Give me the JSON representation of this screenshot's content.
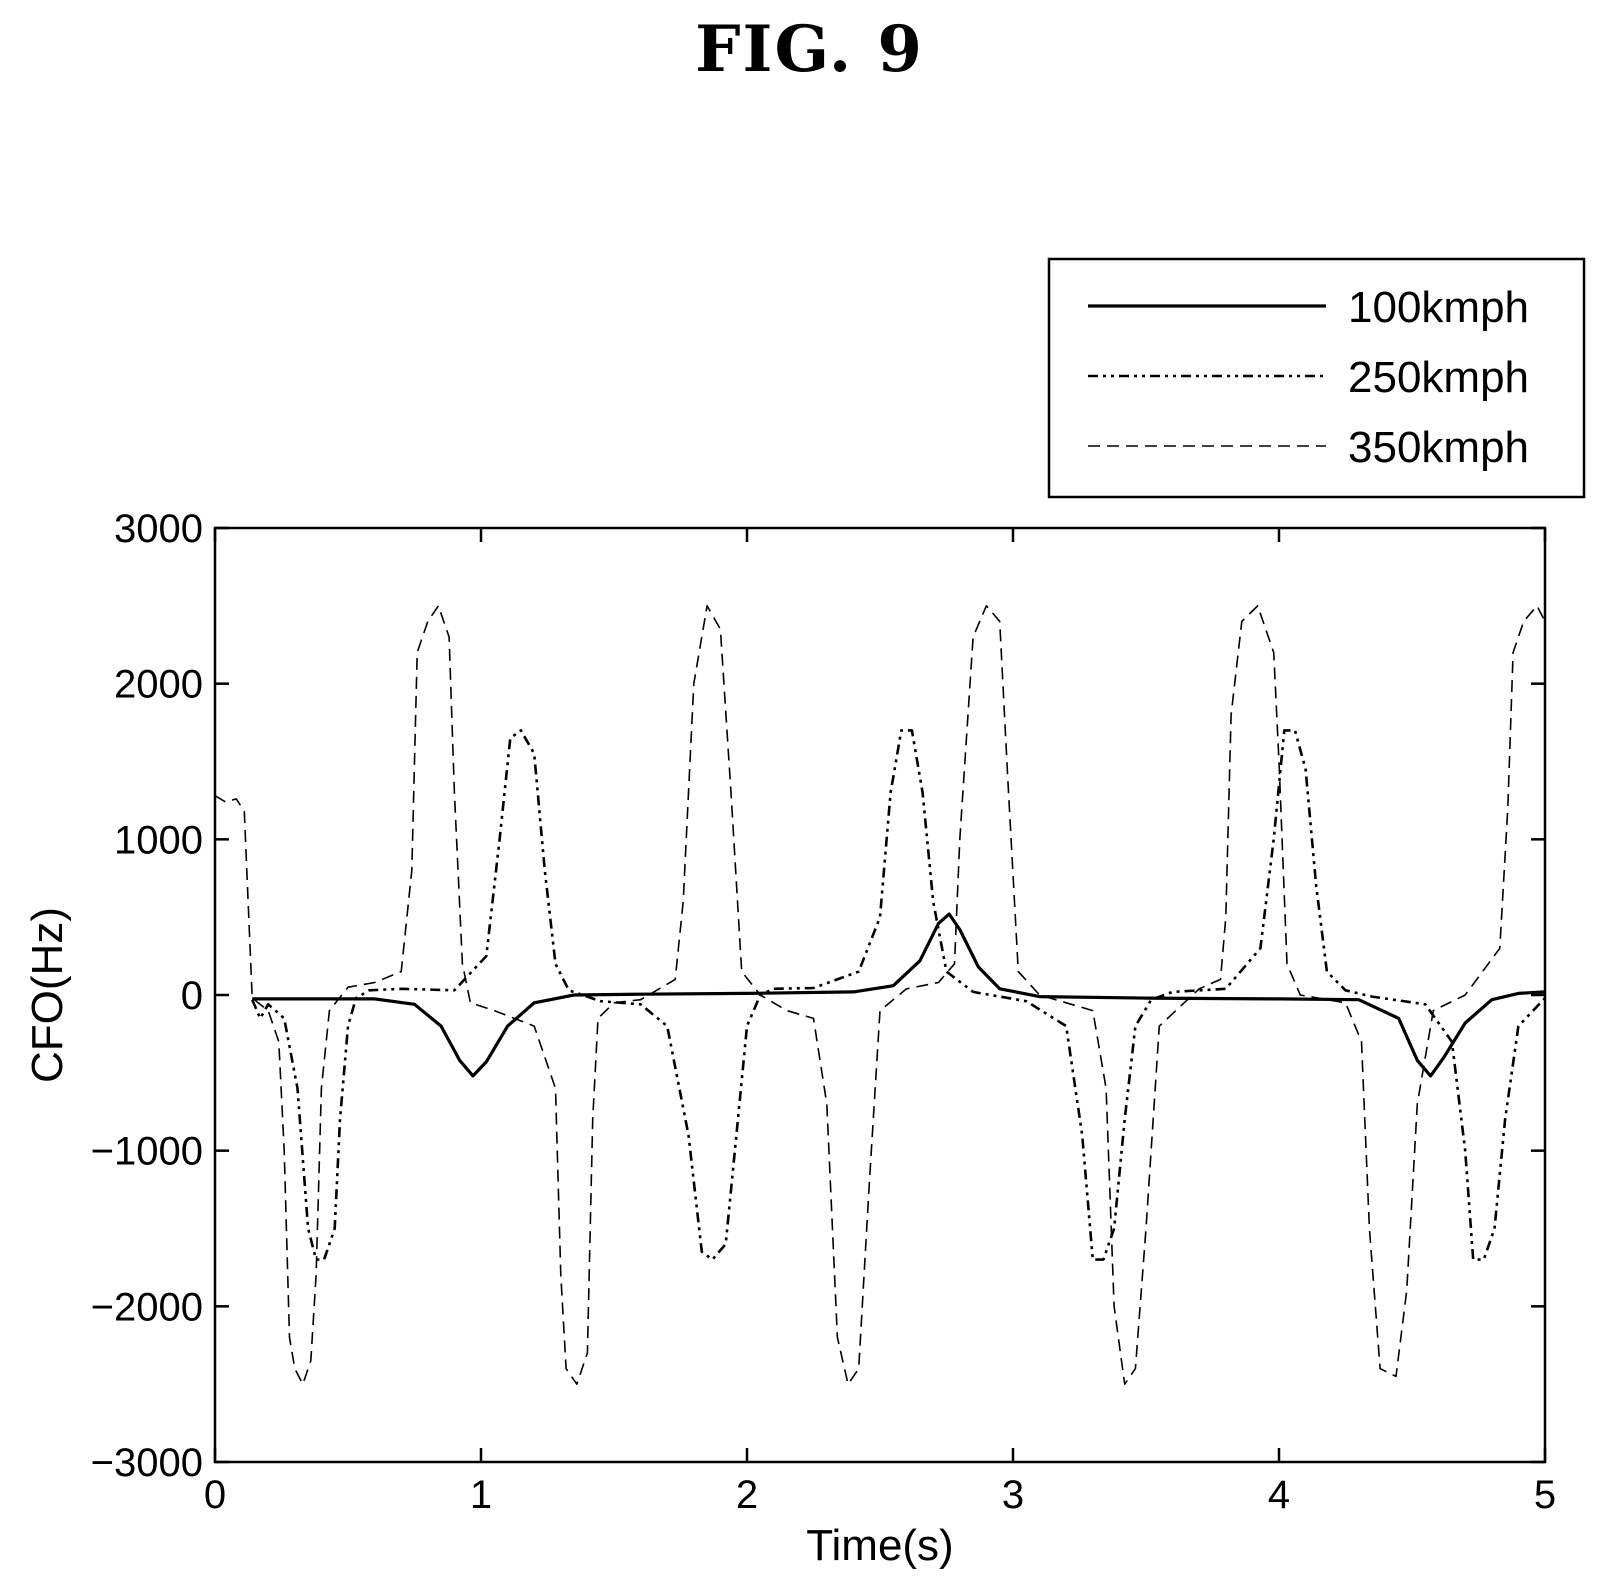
{
  "figure_title": "FIG. 9",
  "chart_data": {
    "type": "line",
    "title": "",
    "xlabel": "Time(s)",
    "ylabel": "CFO(Hz)",
    "xlim": [
      0,
      5
    ],
    "ylim": [
      -3000,
      3000
    ],
    "xticks": [
      0,
      1,
      2,
      3,
      4,
      5
    ],
    "yticks": [
      3000,
      2000,
      1000,
      0,
      -1000,
      -2000,
      -3000
    ],
    "xtick_labels": [
      "0",
      "1",
      "2",
      "3",
      "4",
      "5"
    ],
    "ytick_labels": [
      "3000",
      "2000",
      "1000",
      "0",
      "−1000",
      "−2000",
      "−3000"
    ],
    "grid": false,
    "legend_position": "top-right, above plot",
    "series": [
      {
        "name": "100kmph",
        "style": "solid",
        "x": [
          0.14,
          0.6,
          0.75,
          0.85,
          0.92,
          0.97,
          1.02,
          1.1,
          1.2,
          1.35,
          1.6,
          2.0,
          2.4,
          2.55,
          2.65,
          2.72,
          2.76,
          2.8,
          2.87,
          2.95,
          3.1,
          3.5,
          4.0,
          4.3,
          4.45,
          4.52,
          4.57,
          4.62,
          4.7,
          4.8,
          4.9,
          5.0
        ],
        "y": [
          -25,
          -25,
          -60,
          -200,
          -420,
          -520,
          -430,
          -200,
          -50,
          0,
          5,
          10,
          20,
          60,
          220,
          460,
          520,
          420,
          180,
          40,
          -10,
          -20,
          -25,
          -30,
          -150,
          -420,
          -520,
          -400,
          -180,
          -30,
          10,
          20
        ]
      },
      {
        "name": "250kmph",
        "style": "dash-dot-dot",
        "x": [
          0.14,
          0.17,
          0.2,
          0.26,
          0.31,
          0.35,
          0.38,
          0.41,
          0.45,
          0.47,
          0.5,
          0.53,
          0.58,
          0.7,
          0.9,
          1.02,
          1.07,
          1.11,
          1.15,
          1.2,
          1.24,
          1.28,
          1.33,
          1.45,
          1.6,
          1.7,
          1.78,
          1.83,
          1.87,
          1.92,
          1.96,
          2.0,
          2.05,
          2.1,
          2.25,
          2.42,
          2.5,
          2.54,
          2.58,
          2.62,
          2.66,
          2.7,
          2.75,
          2.85,
          3.05,
          3.2,
          3.26,
          3.3,
          3.34,
          3.38,
          3.42,
          3.46,
          3.52,
          3.6,
          3.8,
          3.93,
          3.98,
          4.02,
          4.06,
          4.1,
          4.14,
          4.18,
          4.25,
          4.35,
          4.55,
          4.65,
          4.7,
          4.73,
          4.77,
          4.81,
          4.85,
          4.9,
          5.0
        ],
        "y": [
          -30,
          -150,
          -60,
          -150,
          -600,
          -1500,
          -1700,
          -1700,
          -1500,
          -800,
          -200,
          -20,
          30,
          40,
          30,
          250,
          1000,
          1650,
          1700,
          1550,
          800,
          200,
          30,
          -40,
          -60,
          -200,
          -900,
          -1650,
          -1700,
          -1600,
          -900,
          -200,
          0,
          40,
          45,
          150,
          500,
          1300,
          1700,
          1700,
          1300,
          600,
          150,
          20,
          -40,
          -200,
          -900,
          -1700,
          -1700,
          -1500,
          -800,
          -200,
          -30,
          20,
          40,
          300,
          1000,
          1700,
          1700,
          1450,
          700,
          150,
          30,
          -10,
          -60,
          -300,
          -1000,
          -1700,
          -1700,
          -1500,
          -800,
          -200,
          -20
        ]
      },
      {
        "name": "350kmph",
        "style": "dashed",
        "x": [
          0.0,
          0.04,
          0.08,
          0.11,
          0.14,
          0.2,
          0.24,
          0.26,
          0.28,
          0.3,
          0.33,
          0.36,
          0.38,
          0.4,
          0.43,
          0.5,
          0.6,
          0.7,
          0.74,
          0.76,
          0.8,
          0.84,
          0.88,
          0.9,
          0.93,
          0.96,
          1.05,
          1.2,
          1.28,
          1.3,
          1.32,
          1.36,
          1.4,
          1.42,
          1.44,
          1.5,
          1.6,
          1.73,
          1.76,
          1.8,
          1.85,
          1.9,
          1.94,
          1.98,
          2.05,
          2.15,
          2.25,
          2.3,
          2.34,
          2.38,
          2.42,
          2.46,
          2.5,
          2.6,
          2.72,
          2.78,
          2.8,
          2.85,
          2.9,
          2.95,
          2.98,
          3.02,
          3.1,
          3.2,
          3.3,
          3.35,
          3.38,
          3.42,
          3.46,
          3.5,
          3.55,
          3.7,
          3.78,
          3.8,
          3.82,
          3.86,
          3.92,
          3.98,
          4.0,
          4.03,
          4.08,
          4.25,
          4.31,
          4.34,
          4.38,
          4.44,
          4.48,
          4.52,
          4.58,
          4.7,
          4.83,
          4.86,
          4.88,
          4.92,
          4.97,
          5.0
        ],
        "y": [
          1280,
          1240,
          1260,
          1180,
          -20,
          -100,
          -300,
          -1000,
          -2200,
          -2400,
          -2500,
          -2350,
          -1800,
          -600,
          -100,
          50,
          80,
          150,
          800,
          2200,
          2400,
          2500,
          2300,
          1300,
          200,
          -50,
          -100,
          -200,
          -600,
          -1800,
          -2400,
          -2500,
          -2300,
          -800,
          -150,
          -50,
          -30,
          100,
          600,
          2000,
          2500,
          2350,
          1300,
          150,
          0,
          -100,
          -150,
          -700,
          -2200,
          -2500,
          -2400,
          -1200,
          -100,
          40,
          80,
          200,
          1000,
          2300,
          2500,
          2400,
          1400,
          150,
          0,
          -50,
          -100,
          -600,
          -2000,
          -2500,
          -2400,
          -1500,
          -200,
          40,
          100,
          500,
          1800,
          2400,
          2500,
          2200,
          1500,
          200,
          0,
          -50,
          -300,
          -1500,
          -2400,
          -2450,
          -1900,
          -700,
          -100,
          0,
          300,
          1200,
          2200,
          2400,
          2500,
          2400
        ]
      }
    ]
  }
}
